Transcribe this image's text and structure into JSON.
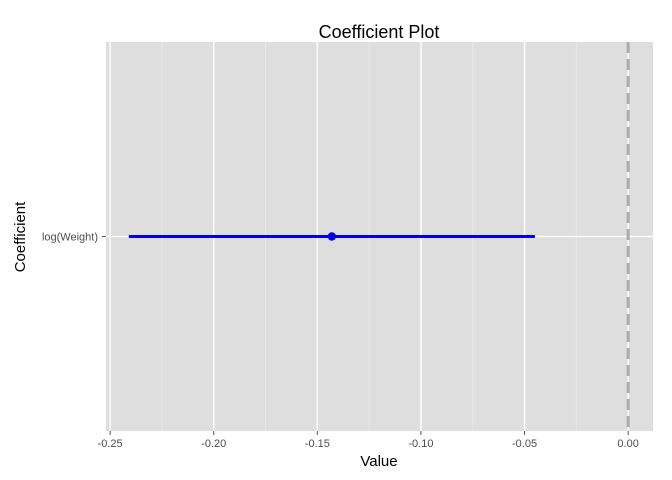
{
  "chart_data": {
    "type": "coefficient-plot",
    "title": "Coefficient Plot",
    "xlabel": "Value",
    "ylabel": "Coefficient",
    "xlim": [
      -0.252,
      0.012
    ],
    "x_ticks": [
      -0.25,
      -0.2,
      -0.15,
      -0.1,
      -0.05,
      0.0
    ],
    "x_tick_labels": [
      "-0.25",
      "-0.20",
      "-0.15",
      "-0.10",
      "-0.05",
      "0.00"
    ],
    "grid": true,
    "reference_line": {
      "x": 0.0,
      "style": "dashed"
    },
    "categories": [
      "log(Weight)"
    ],
    "series": [
      {
        "coefficient": "log(Weight)",
        "estimate": -0.143,
        "low": -0.241,
        "high": -0.045
      }
    ]
  },
  "colors": {
    "panel_background": "#dedede",
    "grid_major": "#ffffff",
    "grid_minor": "#e8e8e8",
    "series": "#0000ee",
    "reference_line": "#ababab"
  }
}
